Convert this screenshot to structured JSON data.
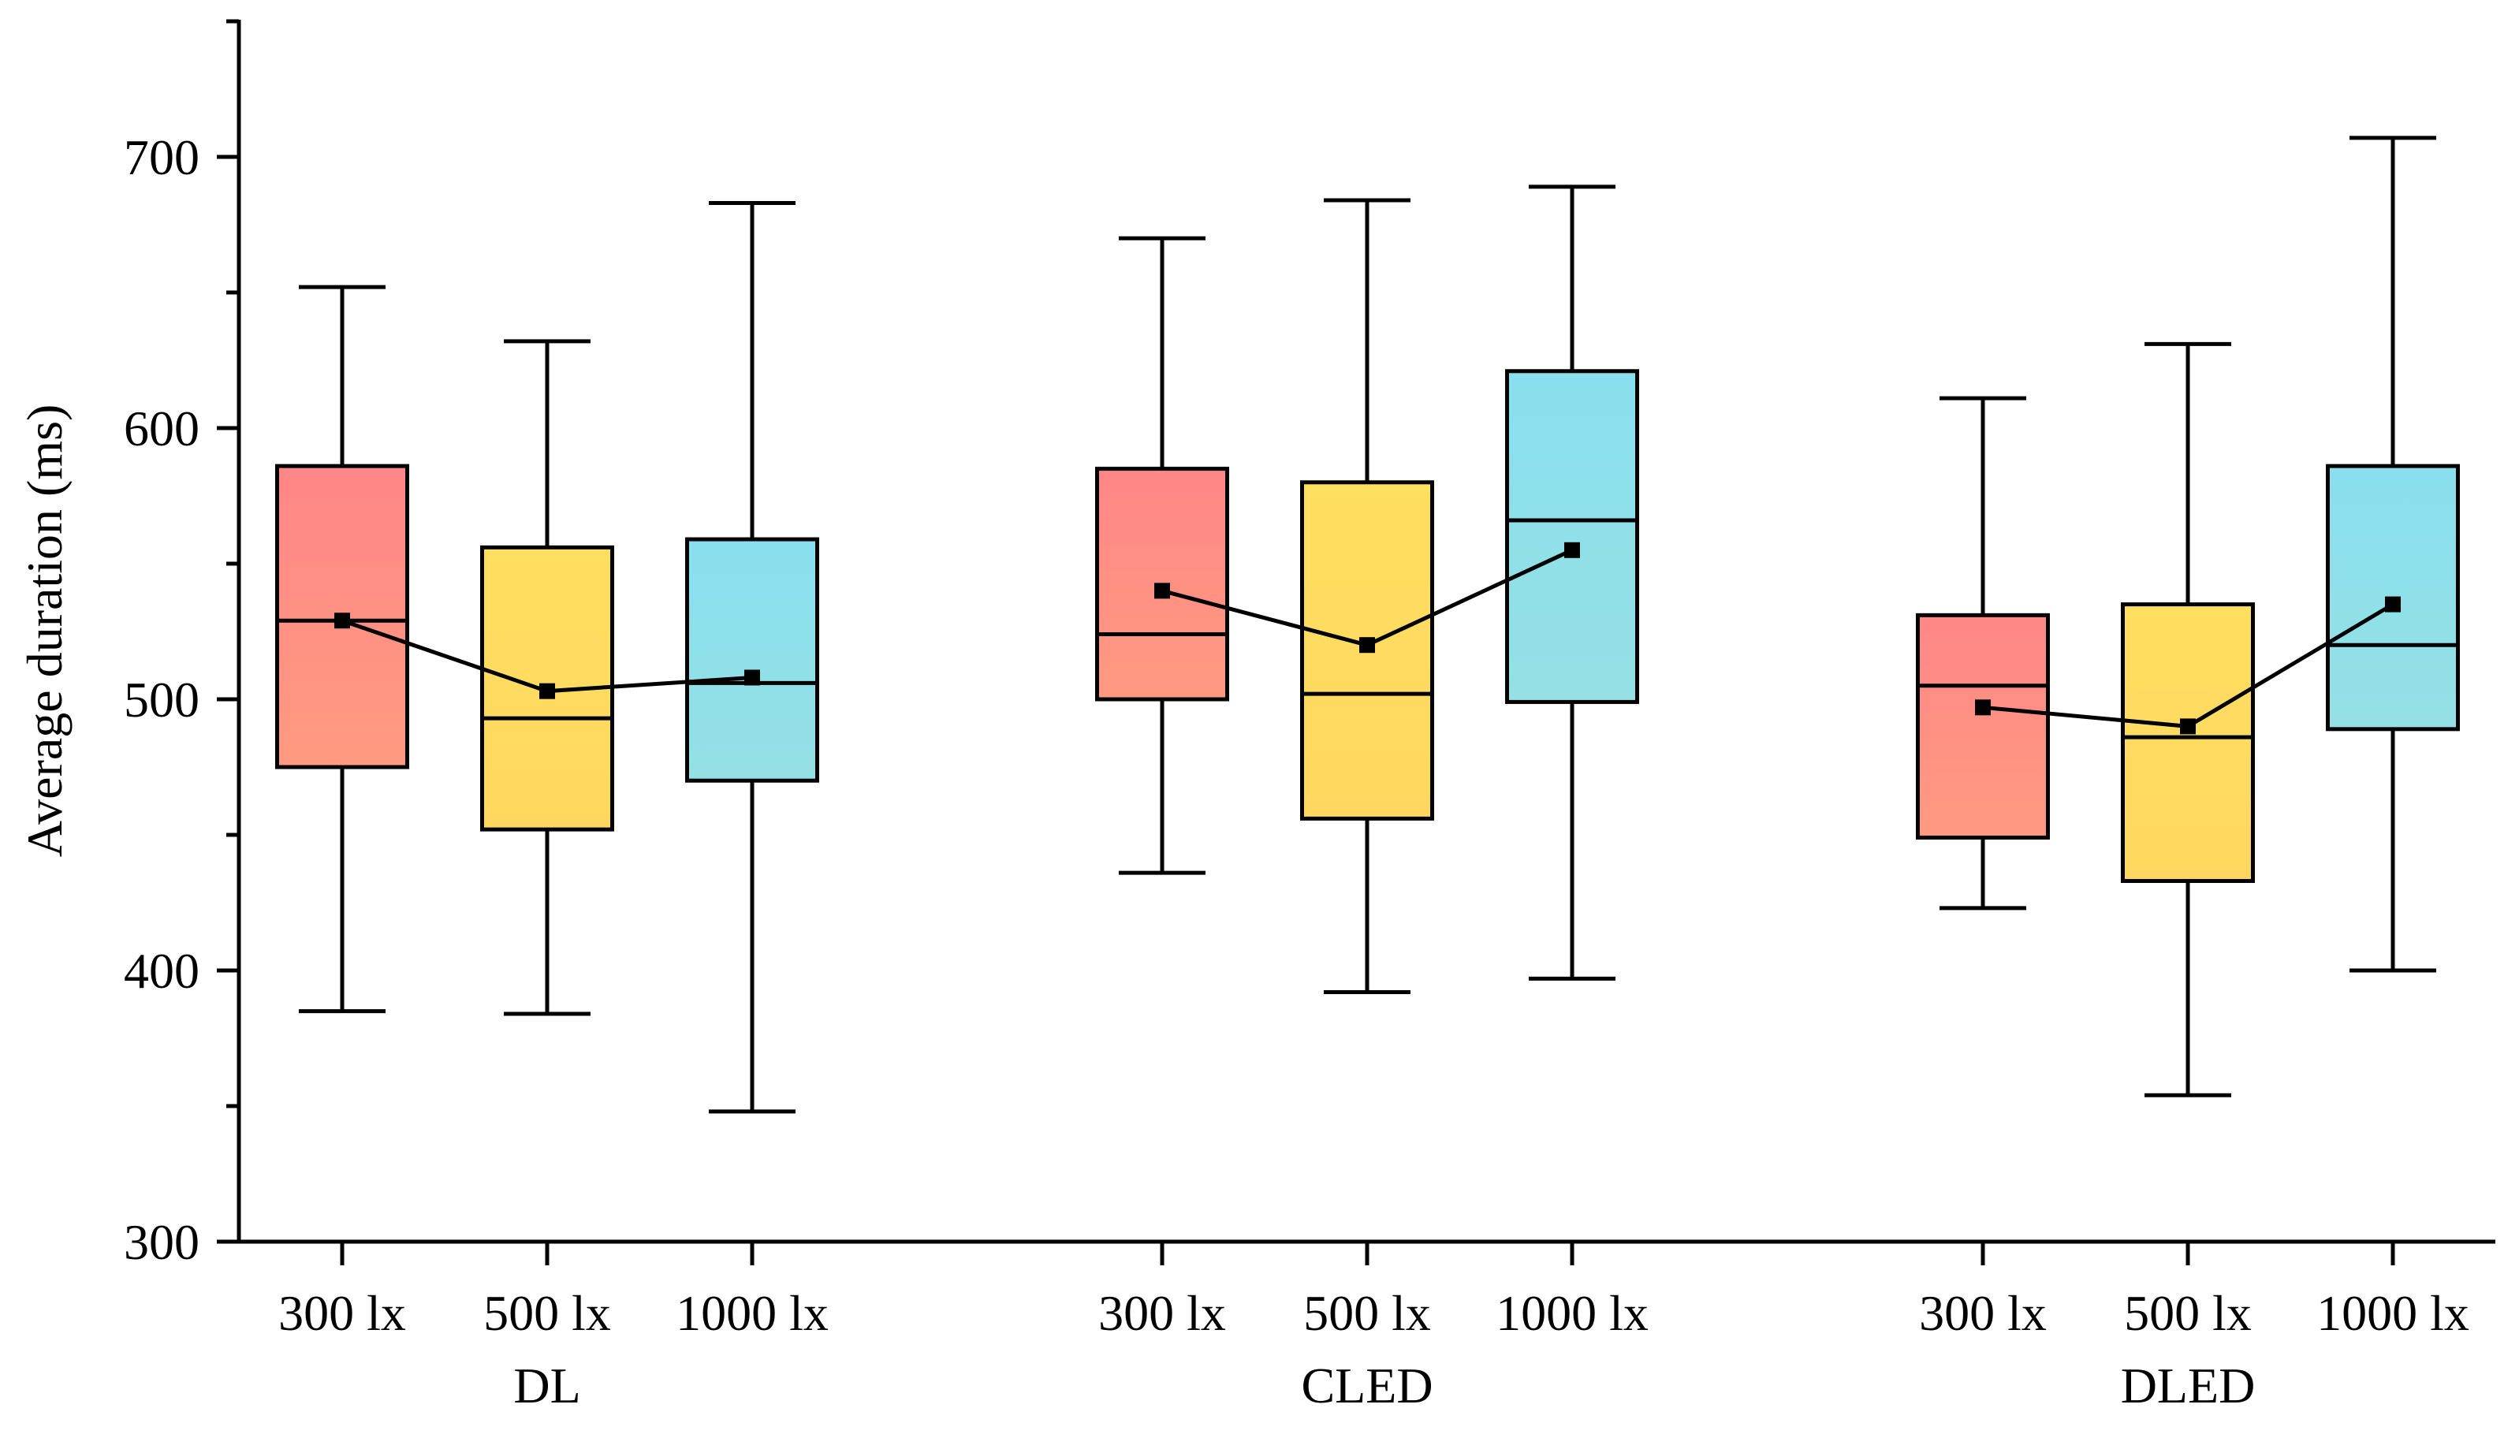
{
  "chart_data": {
    "type": "box",
    "title": "",
    "ylabel": "Average duration (ms)",
    "xlabel": "",
    "ylim": [
      300,
      750
    ],
    "yticks": [
      300,
      400,
      500,
      600,
      700
    ],
    "grid": false,
    "colors": {
      "300 lx": "#FF8A8A",
      "500 lx": "#FFDC5E",
      "1000 lx": "#8EDFEB"
    },
    "groups": [
      {
        "name": "DL",
        "boxes": [
          {
            "label": "300 lx",
            "min": 385,
            "q1": 475,
            "median": 529,
            "q3": 586,
            "max": 652,
            "mean": 529
          },
          {
            "label": "500 lx",
            "min": 384,
            "q1": 452,
            "median": 493,
            "q3": 556,
            "max": 632,
            "mean": 503
          },
          {
            "label": "1000 lx",
            "min": 348,
            "q1": 470,
            "median": 506,
            "q3": 559,
            "max": 683,
            "mean": 508
          }
        ]
      },
      {
        "name": "CLED",
        "boxes": [
          {
            "label": "300 lx",
            "min": 436,
            "q1": 500,
            "median": 524,
            "q3": 585,
            "max": 670,
            "mean": 540
          },
          {
            "label": "500 lx",
            "min": 392,
            "q1": 456,
            "median": 502,
            "q3": 580,
            "max": 684,
            "mean": 520
          },
          {
            "label": "1000 lx",
            "min": 397,
            "q1": 499,
            "median": 566,
            "q3": 621,
            "max": 689,
            "mean": 555
          }
        ]
      },
      {
        "name": "DLED",
        "boxes": [
          {
            "label": "300 lx",
            "min": 423,
            "q1": 449,
            "median": 505,
            "q3": 531,
            "max": 611,
            "mean": 497
          },
          {
            "label": "500 lx",
            "min": 354,
            "q1": 433,
            "median": 486,
            "q3": 535,
            "max": 631,
            "mean": 490
          },
          {
            "label": "1000 lx",
            "min": 400,
            "q1": 489,
            "median": 520,
            "q3": 586,
            "max": 707,
            "mean": 535
          }
        ]
      }
    ]
  }
}
